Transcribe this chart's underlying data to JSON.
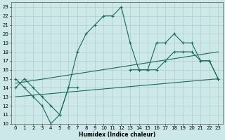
{
  "xlabel": "Humidex (Indice chaleur)",
  "bg_color": "#cce8e8",
  "grid_color": "#b0cccc",
  "line_color": "#1a6b5a",
  "xlim": [
    -0.5,
    23.5
  ],
  "ylim": [
    10,
    23.5
  ],
  "xticks": [
    0,
    1,
    2,
    3,
    4,
    5,
    6,
    7,
    8,
    9,
    10,
    11,
    12,
    13,
    14,
    15,
    16,
    17,
    18,
    19,
    20,
    21,
    22,
    23
  ],
  "yticks": [
    10,
    11,
    12,
    13,
    14,
    15,
    16,
    17,
    18,
    19,
    20,
    21,
    22,
    23
  ],
  "series1": {
    "x": [
      0,
      1,
      2,
      3,
      4,
      5,
      6,
      7,
      8,
      9,
      10,
      11,
      12,
      13,
      14,
      15,
      16,
      17,
      18,
      19,
      20,
      21,
      22,
      23
    ],
    "y": [
      14,
      15,
      14,
      13,
      12,
      11,
      14,
      18,
      20,
      21,
      22,
      22,
      23,
      19,
      16,
      16,
      19,
      19,
      20,
      19,
      19,
      17,
      17,
      15
    ]
  },
  "series2": {
    "x": [
      0,
      1,
      2,
      3,
      4,
      5,
      6,
      7,
      8,
      9,
      10,
      11,
      12,
      13,
      14,
      15,
      16,
      17,
      18,
      19,
      20,
      21,
      22,
      23
    ],
    "y": [
      15,
      14,
      13,
      12,
      10,
      11,
      14,
      14,
      null,
      null,
      null,
      null,
      null,
      16,
      16,
      16,
      16,
      17,
      18,
      18,
      18,
      17,
      17,
      15
    ]
  },
  "line1": {
    "x": [
      0,
      23
    ],
    "y": [
      14.5,
      18
    ]
  },
  "line2": {
    "x": [
      0,
      23
    ],
    "y": [
      13,
      15
    ]
  }
}
